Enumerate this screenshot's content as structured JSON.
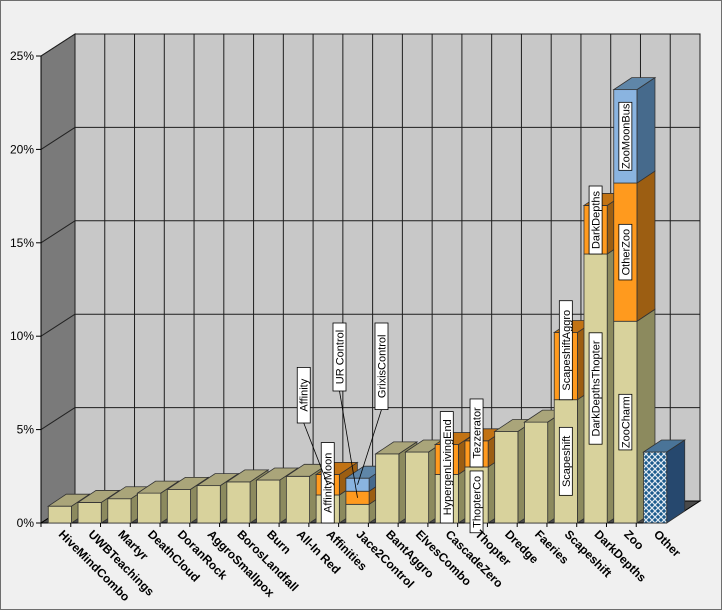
{
  "chart_data": {
    "type": "bar",
    "stacked": true,
    "three_d": true,
    "yaxis": {
      "min": 0,
      "max": 25,
      "ticks": [
        0,
        5,
        10,
        15,
        20,
        25
      ],
      "tick_format": "{v}%"
    },
    "grid": true,
    "categories": [
      "HiveMindCombo",
      "UWBTeachings",
      "Martyr",
      "DeathCloud",
      "DoranRock",
      "AggroSmallpox",
      "BorosLandfall",
      "Burn",
      "All-In Red",
      "Affinities",
      "Jace2Control",
      "BantAggro",
      "ElvesCombo",
      "CascadeZero",
      "Thopter",
      "Dredge",
      "Faeries",
      "Scapeshift",
      "DarkDepths",
      "Zoo",
      "Other"
    ],
    "bars": [
      {
        "category": "HiveMindCombo",
        "segments": [
          {
            "value": 0.9,
            "color": "tan"
          }
        ]
      },
      {
        "category": "UWBTeachings",
        "segments": [
          {
            "value": 1.1,
            "color": "tan"
          }
        ]
      },
      {
        "category": "Martyr",
        "segments": [
          {
            "value": 1.3,
            "color": "tan"
          }
        ]
      },
      {
        "category": "DeathCloud",
        "segments": [
          {
            "value": 1.6,
            "color": "tan"
          }
        ]
      },
      {
        "category": "DoranRock",
        "segments": [
          {
            "value": 1.8,
            "color": "tan"
          }
        ]
      },
      {
        "category": "AggroSmallpox",
        "segments": [
          {
            "value": 2.0,
            "color": "tan"
          }
        ]
      },
      {
        "category": "BorosLandfall",
        "segments": [
          {
            "value": 2.2,
            "color": "tan"
          }
        ]
      },
      {
        "category": "Burn",
        "segments": [
          {
            "value": 2.3,
            "color": "tan"
          }
        ]
      },
      {
        "category": "All-In Red",
        "segments": [
          {
            "value": 2.5,
            "color": "tan"
          }
        ]
      },
      {
        "category": "Affinities",
        "segments": [
          {
            "value": 1.5,
            "color": "tan",
            "label": "AffinityMoon"
          },
          {
            "value": 1.1,
            "color": "orange",
            "label": "Affinity",
            "callout": true
          }
        ]
      },
      {
        "category": "Jace2Control",
        "segments": [
          {
            "value": 1.0,
            "color": "tan"
          },
          {
            "value": 0.7,
            "color": "orange",
            "label": "UR Control",
            "callout": true
          },
          {
            "value": 0.7,
            "color": "blue",
            "label": "GrixisControl",
            "callout": true
          }
        ]
      },
      {
        "category": "BantAggro",
        "segments": [
          {
            "value": 3.7,
            "color": "tan"
          }
        ]
      },
      {
        "category": "ElvesCombo",
        "segments": [
          {
            "value": 3.8,
            "color": "tan"
          }
        ]
      },
      {
        "category": "CascadeZero",
        "segments": [
          {
            "value": 2.6,
            "color": "tan",
            "label": "HypergenLivingEnd"
          },
          {
            "value": 1.6,
            "color": "orange"
          }
        ]
      },
      {
        "category": "Thopter",
        "segments": [
          {
            "value": 3.0,
            "color": "tan",
            "label": "ThopterCo"
          },
          {
            "value": 1.4,
            "color": "orange",
            "label": "Tezzerator"
          }
        ]
      },
      {
        "category": "Dredge",
        "segments": [
          {
            "value": 4.9,
            "color": "tan"
          }
        ]
      },
      {
        "category": "Faeries",
        "segments": [
          {
            "value": 5.4,
            "color": "tan"
          }
        ]
      },
      {
        "category": "Scapeshift",
        "segments": [
          {
            "value": 6.6,
            "color": "tan",
            "label": "Scapeshift"
          },
          {
            "value": 3.6,
            "color": "orange",
            "label": "ScapeshiftAggro"
          }
        ]
      },
      {
        "category": "DarkDepths",
        "segments": [
          {
            "value": 14.4,
            "color": "tan",
            "label": "DarkDepthsThopter"
          },
          {
            "value": 2.6,
            "color": "orange",
            "label": "DarkDepths"
          }
        ]
      },
      {
        "category": "Zoo",
        "segments": [
          {
            "value": 10.8,
            "color": "tan",
            "label": "ZooCharm"
          },
          {
            "value": 7.4,
            "color": "orange",
            "label": "OtherZoo"
          },
          {
            "value": 5.0,
            "color": "blue",
            "label": "ZooMoonBus"
          }
        ]
      },
      {
        "category": "Other",
        "segments": [
          {
            "value": 3.8,
            "color": "hatch"
          }
        ]
      }
    ],
    "colors": {
      "tan": {
        "front": "#d8d29c",
        "side": "#8c8a5e",
        "top": "#aaa57a"
      },
      "orange": {
        "front": "#ff9a1e",
        "side": "#9c5e12",
        "top": "#c27314"
      },
      "blue": {
        "front": "#8ab4e0",
        "side": "#466a8c",
        "top": "#5f86a8"
      },
      "hatch": {
        "front": "#1a5a8c",
        "side": "#26486e",
        "top": "#4a7498"
      },
      "wall_back": "#c8c8c8",
      "wall_left": "#7a7a7a",
      "floor": "#4a4a4a",
      "grid": "#1e1e1e"
    }
  }
}
